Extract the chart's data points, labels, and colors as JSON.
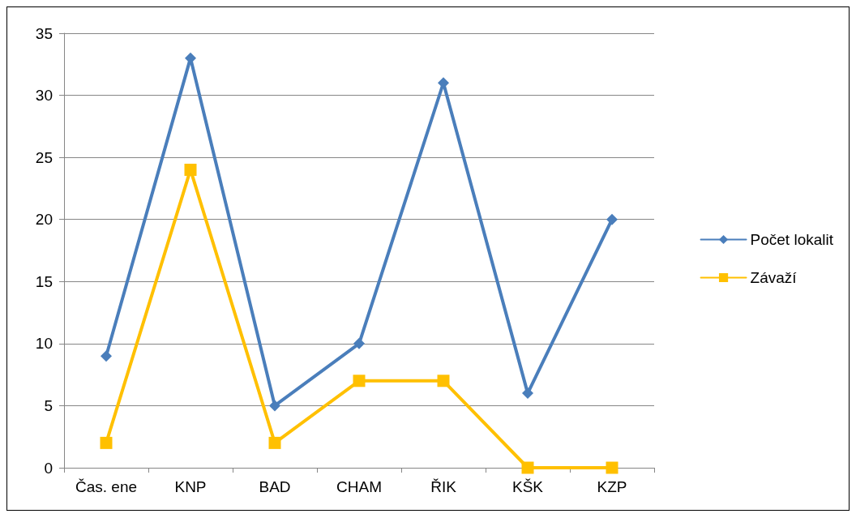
{
  "chart_data": {
    "type": "line",
    "categories": [
      "Čas. ene",
      "KNP",
      "BAD",
      "CHAM",
      "ŘIK",
      "KŠK",
      "KZP"
    ],
    "series": [
      {
        "name": "Počet lokalit",
        "color": "#4a7ebb",
        "marker": "diamond",
        "values": [
          9,
          33,
          5,
          10,
          31,
          6,
          20
        ]
      },
      {
        "name": "Závaží",
        "color": "#ffc000",
        "marker": "square",
        "values": [
          2,
          24,
          2,
          7,
          7,
          0,
          0
        ]
      }
    ],
    "ylim": [
      0,
      35
    ],
    "yticks": [
      0,
      5,
      10,
      15,
      20,
      25,
      30,
      35
    ],
    "grid": "y",
    "legend": "right",
    "line_style": "solid"
  }
}
